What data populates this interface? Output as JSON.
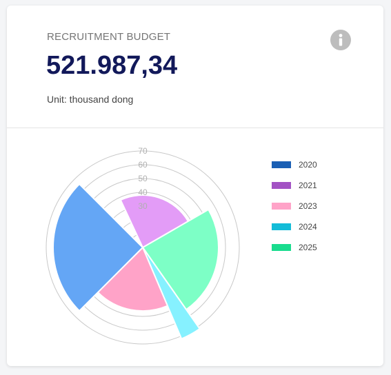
{
  "card": {
    "title": "RECRUITMENT BUDGET",
    "amount": "521.987,34",
    "unit": "Unit: thousand dong"
  },
  "icons": {
    "info": "info-icon"
  },
  "chart_data": {
    "type": "polar-area",
    "title": "",
    "radial_axis": {
      "min": 0,
      "max": 70,
      "ticks": [
        0,
        10,
        20,
        30,
        40,
        50,
        60,
        70
      ],
      "tick_labels": [
        "30",
        "40",
        "50",
        "60",
        "70"
      ],
      "grid": true
    },
    "legend_position": "right",
    "series": [
      {
        "name": "2020",
        "color": "#1a5fb4",
        "value": 65,
        "fill": "#64a6f5"
      },
      {
        "name": "2021",
        "color": "#a352c4",
        "value": 38,
        "fill": "#e39cf7"
      },
      {
        "name": "2023",
        "color": "#ffa3c8",
        "value": 46,
        "fill": "#ffa3c8"
      },
      {
        "name": "2024",
        "color": "#13bcd8",
        "value": 72,
        "fill": "#86f1ff"
      },
      {
        "name": "2025",
        "color": "#19dc8e",
        "value": 55,
        "fill": "#7dffc6"
      }
    ],
    "slices": [
      {
        "series": "2021",
        "start_deg": 335,
        "end_deg": 60
      },
      {
        "series": "2025",
        "start_deg": 60,
        "end_deg": 145
      },
      {
        "series": "2024",
        "start_deg": 145,
        "end_deg": 157
      },
      {
        "series": "2023",
        "start_deg": 157,
        "end_deg": 225
      },
      {
        "series": "2020",
        "start_deg": 225,
        "end_deg": 315
      }
    ]
  }
}
